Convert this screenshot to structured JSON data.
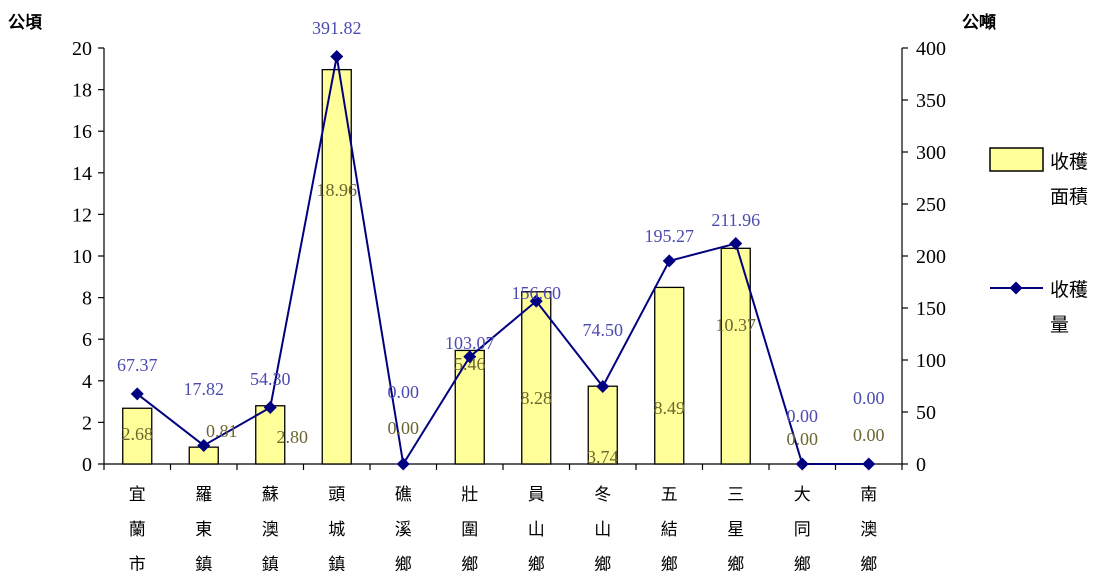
{
  "chart_data": {
    "type": "bar",
    "categories": [
      "宜蘭市",
      "羅東鎮",
      "蘇澳鎮",
      "頭城鎮",
      "礁溪鄉",
      "壯圍鄉",
      "員山鄉",
      "冬山鄉",
      "五結鄉",
      "三星鄉",
      "大同鄉",
      "南澳鄉"
    ],
    "series": [
      {
        "name": "收穫面積",
        "type": "bar",
        "axis": "left",
        "color": "#ffff99",
        "values": [
          2.68,
          0.81,
          2.8,
          18.96,
          0.0,
          5.46,
          8.28,
          3.74,
          8.49,
          10.37,
          0.0,
          0.0
        ],
        "value_labels": [
          "2.68",
          "0.81",
          "2.80",
          "18.96",
          "0.00",
          "5.46",
          "8.28",
          "3.74",
          "8.49",
          "10.37",
          "0.00",
          "0.00"
        ]
      },
      {
        "name": "收穫量",
        "type": "line",
        "axis": "right",
        "color": "#000080",
        "values": [
          67.37,
          17.82,
          54.3,
          391.82,
          0.0,
          103.07,
          156.6,
          74.5,
          195.27,
          211.96,
          0.0,
          0.0
        ],
        "value_labels": [
          "67.37",
          "17.82",
          "54.30",
          "391.82",
          "0.00",
          "103.07",
          "156.60",
          "74.50",
          "195.27",
          "211.96",
          "0.00",
          "0.00"
        ]
      }
    ],
    "y_left": {
      "unit": "公頃",
      "range": [
        0,
        20
      ],
      "ticks": [
        "0",
        "2",
        "4",
        "6",
        "8",
        "10",
        "12",
        "14",
        "16",
        "18",
        "20"
      ]
    },
    "y_right": {
      "unit": "公噸",
      "range": [
        0,
        400
      ],
      "ticks": [
        "0",
        "50",
        "100",
        "150",
        "200",
        "250",
        "300",
        "350",
        "400"
      ]
    },
    "legend": {
      "position": "right",
      "entries": [
        "收穫面積",
        "收穫量"
      ]
    },
    "grid": false
  }
}
